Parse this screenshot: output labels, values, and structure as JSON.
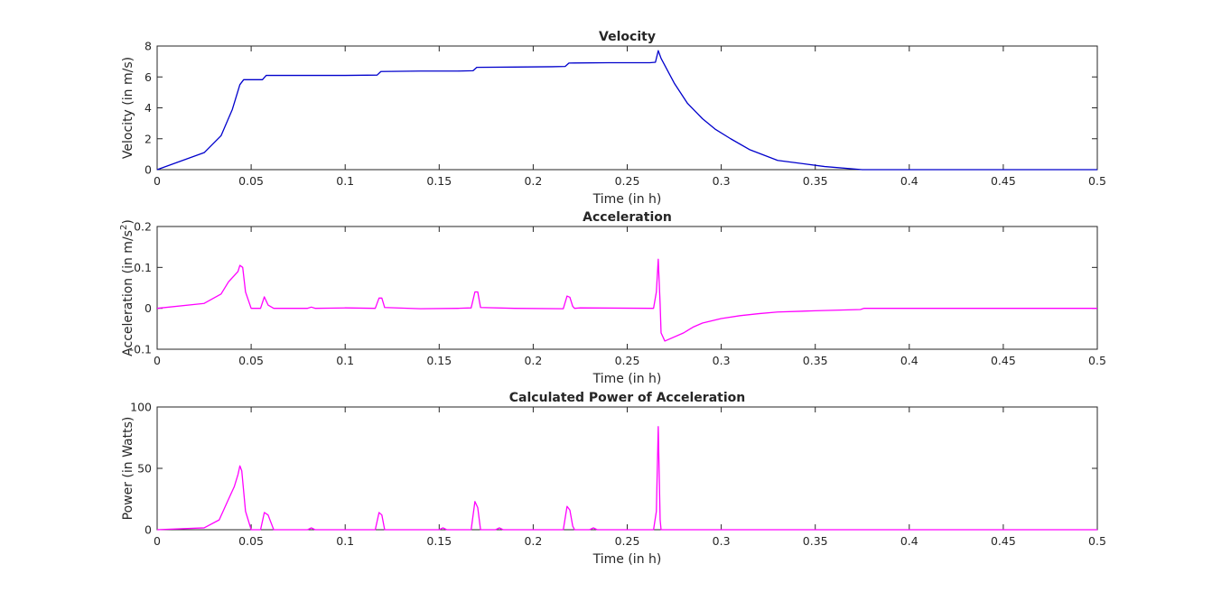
{
  "chart_data": [
    {
      "type": "line",
      "title": "Velocity",
      "xlabel": "Time (in h)",
      "ylabel": "Velocity (in m/s)",
      "ylabel_sup": "",
      "ylabel_end": "",
      "xlim": [
        0,
        0.5
      ],
      "ylim": [
        0,
        8
      ],
      "xticks": [
        0,
        0.05,
        0.1,
        0.15,
        0.2,
        0.25,
        0.3,
        0.35,
        0.4,
        0.45,
        0.5
      ],
      "xtick_labels": [
        "0",
        "0.05",
        "0.1",
        "0.15",
        "0.2",
        "0.25",
        "0.3",
        "0.35",
        "0.4",
        "0.45",
        "0.5"
      ],
      "yticks": [
        0,
        2,
        4,
        6,
        8
      ],
      "ytick_labels": [
        "0",
        "2",
        "4",
        "6",
        "8"
      ],
      "grid": false,
      "series": [
        {
          "color": "#0000cc",
          "x": [
            0,
            0.025,
            0.034,
            0.04,
            0.044,
            0.046,
            0.056,
            0.058,
            0.08,
            0.1,
            0.117,
            0.119,
            0.14,
            0.16,
            0.168,
            0.17,
            0.19,
            0.21,
            0.217,
            0.219,
            0.24,
            0.262,
            0.265,
            0.2665,
            0.268,
            0.275,
            0.282,
            0.29,
            0.297,
            0.305,
            0.315,
            0.33,
            0.355,
            0.375,
            0.4,
            0.5
          ],
          "y": [
            0,
            1.1,
            2.2,
            3.9,
            5.5,
            5.82,
            5.82,
            6.1,
            6.1,
            6.1,
            6.12,
            6.35,
            6.38,
            6.38,
            6.4,
            6.62,
            6.64,
            6.66,
            6.68,
            6.9,
            6.92,
            6.92,
            6.95,
            7.7,
            7.2,
            5.6,
            4.3,
            3.3,
            2.6,
            2.0,
            1.3,
            0.6,
            0.2,
            0.0,
            0.0,
            0.0
          ]
        }
      ]
    },
    {
      "type": "line",
      "title": "Acceleration",
      "xlabel": "Time (in h)",
      "ylabel": "Acceleration (in m/s",
      "ylabel_sup": "2",
      "ylabel_end": ")",
      "xlim": [
        0,
        0.5
      ],
      "ylim": [
        -0.1,
        0.2
      ],
      "xticks": [
        0,
        0.05,
        0.1,
        0.15,
        0.2,
        0.25,
        0.3,
        0.35,
        0.4,
        0.45,
        0.5
      ],
      "xtick_labels": [
        "0",
        "0.05",
        "0.1",
        "0.15",
        "0.2",
        "0.25",
        "0.3",
        "0.35",
        "0.4",
        "0.45",
        "0.5"
      ],
      "yticks": [
        -0.1,
        0,
        0.1,
        0.2
      ],
      "ytick_labels": [
        "-0.1",
        "0",
        "0.1",
        "0.2"
      ],
      "grid": false,
      "series": [
        {
          "color": "#ff00ff",
          "x": [
            0,
            0.025,
            0.034,
            0.038,
            0.041,
            0.043,
            0.044,
            0.0455,
            0.047,
            0.05,
            0.055,
            0.057,
            0.059,
            0.062,
            0.08,
            0.082,
            0.084,
            0.1,
            0.116,
            0.118,
            0.1195,
            0.121,
            0.14,
            0.16,
            0.167,
            0.169,
            0.1705,
            0.172,
            0.19,
            0.216,
            0.218,
            0.2195,
            0.221,
            0.222,
            0.225,
            0.264,
            0.2655,
            0.2665,
            0.2675,
            0.268,
            0.27,
            0.28,
            0.285,
            0.29,
            0.3,
            0.31,
            0.32,
            0.33,
            0.35,
            0.374,
            0.376,
            0.4,
            0.5
          ],
          "y": [
            0,
            0.012,
            0.035,
            0.065,
            0.08,
            0.09,
            0.105,
            0.1,
            0.04,
            0,
            0,
            0.028,
            0.008,
            0,
            0,
            0.003,
            0,
            0.001,
            0,
            0.025,
            0.025,
            0.002,
            -0.001,
            0,
            0.001,
            0.04,
            0.04,
            0.002,
            0,
            -0.001,
            0.03,
            0.027,
            0.005,
            0,
            0.001,
            0,
            0.04,
            0.12,
            0.01,
            -0.06,
            -0.08,
            -0.06,
            -0.046,
            -0.036,
            -0.025,
            -0.018,
            -0.013,
            -0.009,
            -0.006,
            -0.003,
            0,
            0,
            0
          ]
        }
      ]
    },
    {
      "type": "line",
      "title": "Calculated Power of Acceleration",
      "xlabel": "Time (in h)",
      "ylabel": "Power (in Watts)",
      "ylabel_sup": "",
      "ylabel_end": "",
      "xlim": [
        0,
        0.5
      ],
      "ylim": [
        0,
        100
      ],
      "xticks": [
        0,
        0.05,
        0.1,
        0.15,
        0.2,
        0.25,
        0.3,
        0.35,
        0.4,
        0.45,
        0.5
      ],
      "xtick_labels": [
        "0",
        "0.05",
        "0.1",
        "0.15",
        "0.2",
        "0.25",
        "0.3",
        "0.35",
        "0.4",
        "0.45",
        "0.5"
      ],
      "yticks": [
        0,
        50,
        100
      ],
      "ytick_labels": [
        "0",
        "50",
        "100"
      ],
      "grid": false,
      "series": [
        {
          "color": "#ff00ff",
          "x": [
            0,
            0.025,
            0.033,
            0.038,
            0.041,
            0.043,
            0.044,
            0.045,
            0.047,
            0.05,
            0.055,
            0.057,
            0.059,
            0.062,
            0.08,
            0.082,
            0.084,
            0.1,
            0.116,
            0.118,
            0.1195,
            0.121,
            0.15,
            0.152,
            0.154,
            0.167,
            0.169,
            0.1705,
            0.172,
            0.18,
            0.182,
            0.184,
            0.216,
            0.218,
            0.2195,
            0.221,
            0.222,
            0.23,
            0.232,
            0.234,
            0.264,
            0.2655,
            0.2665,
            0.2675,
            0.268,
            0.27,
            0.5
          ],
          "y": [
            0,
            1.5,
            8,
            25,
            35,
            45,
            52,
            48,
            15,
            0,
            0,
            14,
            12,
            0,
            0,
            1.5,
            0,
            0,
            0,
            14,
            12,
            0,
            0,
            1.5,
            0,
            0,
            23,
            18,
            0,
            0,
            1.5,
            0,
            0,
            19,
            16,
            3,
            0,
            0,
            1.5,
            0,
            0,
            15,
            84,
            8,
            0,
            0,
            0
          ]
        }
      ]
    }
  ]
}
